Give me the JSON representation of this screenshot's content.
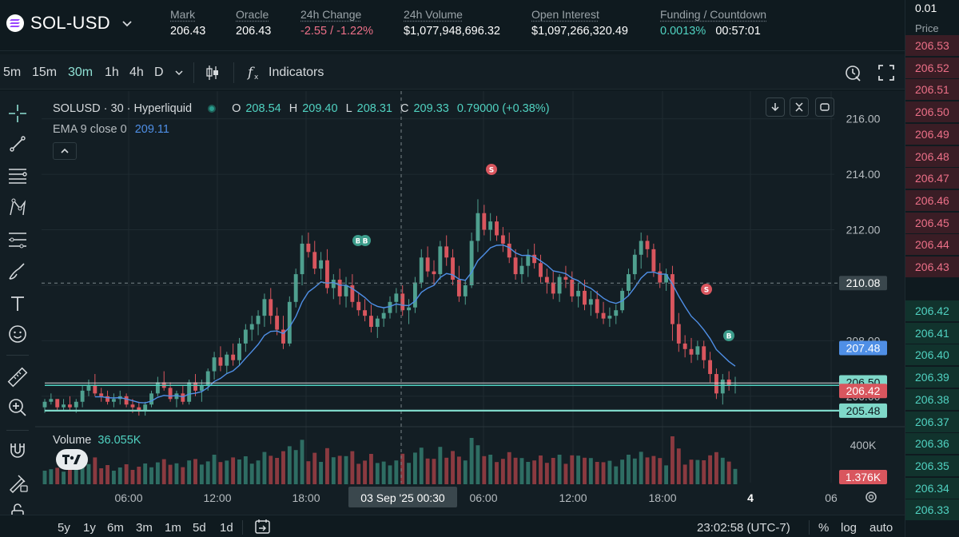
{
  "header": {
    "pair": "SOL-USD",
    "stats": [
      {
        "label": "Mark",
        "value": "206.43",
        "tone": ""
      },
      {
        "label": "Oracle",
        "value": "206.43",
        "tone": ""
      },
      {
        "label": "24h Change",
        "value": "-2.55 / -1.22%",
        "tone": "neg"
      },
      {
        "label": "24h Volume",
        "value": "$1,077,948,696.32",
        "tone": ""
      },
      {
        "label": "Open Interest",
        "value": "$1,097,266,320.49",
        "tone": ""
      },
      {
        "label": "Funding / Countdown",
        "value": "0.0013%",
        "value2": "00:57:01",
        "tone": "pos"
      }
    ]
  },
  "toolbar": {
    "timeframes": [
      "5m",
      "15m",
      "30m",
      "1h",
      "4h",
      "D"
    ],
    "active_timeframe": "30m",
    "indicators_label": "Indicators"
  },
  "legend": {
    "symbol": "SOLUSD · 30 · Hyperliquid",
    "o_label": "O",
    "o": "208.54",
    "h_label": "H",
    "h": "209.40",
    "l_label": "L",
    "l": "208.31",
    "c_label": "C",
    "c": "209.33",
    "change": "0.79000 (+0.38%)",
    "ema_label": "EMA 9 close 0",
    "ema_value": "209.11",
    "volume_label": "Volume",
    "volume_value": "36.055K"
  },
  "price_axis": {
    "ticks": [
      "216.00",
      "214.00",
      "212.00",
      "210.00",
      "208.00",
      "206.00"
    ],
    "crosshair_label": "210.08",
    "ema_tag": "207.48",
    "bid_tag": "206.50",
    "last_tag": "206.42",
    "line_tag": "205.48",
    "vol_tick": "400K",
    "vol_tag": "1.376K"
  },
  "time_axis": {
    "ticks": [
      "06:00",
      "12:00",
      "18:00",
      "06:00",
      "12:00",
      "18:00",
      "4",
      "06"
    ],
    "crosshair_label": "03 Sep '25   00:30"
  },
  "markers": {
    "sell": "S",
    "buy": "B"
  },
  "bottombar": {
    "ranges": [
      "5y",
      "1y",
      "6m",
      "3m",
      "1m",
      "5d",
      "1d"
    ],
    "clock": "23:02:58 (UTC-7)",
    "percent": "%",
    "log": "log",
    "auto": "auto"
  },
  "orderbook": {
    "tick_size": "0.01",
    "header": "Price",
    "asks": [
      "206.53",
      "206.52",
      "206.51",
      "206.50",
      "206.49",
      "206.48",
      "206.47",
      "206.46",
      "206.45",
      "206.44",
      "206.43"
    ],
    "bids": [
      "206.42",
      "206.41",
      "206.40",
      "206.39",
      "206.38",
      "206.37",
      "206.36",
      "206.35",
      "206.34",
      "206.33"
    ]
  },
  "colors": {
    "up": "#4fa08f",
    "down": "#d9565e",
    "ema": "#4f8fe6",
    "accent": "#50d2c1"
  },
  "chart_data": {
    "type": "candlestick",
    "series": [
      {
        "name": "SOLUSD · 30 · Hyperliquid",
        "ohlc": [
          [
            205.6,
            205.9,
            205.4,
            205.8
          ],
          [
            205.8,
            206.1,
            205.7,
            205.9
          ],
          [
            205.9,
            205.8,
            205.5,
            205.6
          ],
          [
            205.6,
            205.9,
            205.5,
            205.7
          ],
          [
            205.7,
            206.0,
            205.5,
            205.6
          ],
          [
            205.6,
            205.9,
            205.4,
            205.8
          ],
          [
            205.8,
            206.4,
            205.6,
            206.2
          ],
          [
            206.2,
            206.6,
            206.0,
            206.4
          ],
          [
            206.4,
            206.8,
            206.0,
            206.1
          ],
          [
            206.1,
            206.3,
            205.8,
            206.0
          ],
          [
            206.0,
            206.2,
            205.7,
            205.8
          ],
          [
            205.8,
            206.1,
            205.6,
            205.9
          ],
          [
            205.9,
            206.2,
            205.7,
            206.0
          ],
          [
            206.0,
            206.1,
            205.6,
            205.7
          ],
          [
            205.7,
            205.9,
            205.4,
            205.6
          ],
          [
            205.6,
            205.8,
            205.3,
            205.5
          ],
          [
            205.5,
            205.8,
            205.3,
            205.7
          ],
          [
            205.7,
            206.2,
            205.6,
            206.1
          ],
          [
            206.1,
            206.7,
            206.0,
            206.5
          ],
          [
            206.5,
            206.9,
            206.2,
            206.3
          ],
          [
            206.3,
            206.5,
            205.8,
            205.9
          ],
          [
            205.9,
            206.2,
            205.6,
            206.1
          ],
          [
            206.1,
            206.4,
            205.7,
            205.8
          ],
          [
            205.8,
            206.6,
            205.7,
            206.5
          ],
          [
            206.5,
            206.8,
            206.0,
            206.2
          ],
          [
            206.2,
            206.6,
            205.8,
            206.4
          ],
          [
            206.4,
            207.0,
            206.2,
            206.9
          ],
          [
            206.9,
            207.6,
            206.6,
            207.4
          ],
          [
            207.4,
            207.8,
            206.9,
            207.1
          ],
          [
            207.1,
            207.6,
            206.8,
            207.5
          ],
          [
            207.5,
            207.9,
            207.1,
            207.3
          ],
          [
            207.3,
            208.1,
            207.1,
            207.9
          ],
          [
            207.9,
            208.6,
            207.6,
            208.4
          ],
          [
            208.4,
            208.9,
            208.0,
            208.6
          ],
          [
            208.6,
            209.1,
            208.2,
            208.9
          ],
          [
            208.9,
            209.7,
            208.5,
            209.5
          ],
          [
            209.5,
            209.9,
            208.6,
            208.9
          ],
          [
            208.9,
            209.2,
            208.2,
            208.4
          ],
          [
            208.4,
            208.9,
            207.7,
            207.9
          ],
          [
            207.9,
            209.6,
            207.8,
            209.4
          ],
          [
            209.4,
            210.6,
            209.2,
            210.4
          ],
          [
            210.4,
            211.8,
            210.0,
            211.5
          ],
          [
            211.5,
            211.9,
            211.0,
            211.2
          ],
          [
            211.2,
            211.6,
            210.4,
            210.6
          ],
          [
            210.6,
            211.2,
            210.2,
            210.9
          ],
          [
            210.9,
            211.3,
            209.7,
            209.9
          ],
          [
            209.9,
            210.4,
            209.5,
            210.2
          ],
          [
            210.2,
            210.6,
            209.3,
            209.6
          ],
          [
            209.6,
            210.3,
            209.2,
            210.0
          ],
          [
            210.0,
            210.4,
            209.2,
            209.4
          ],
          [
            209.4,
            209.7,
            208.9,
            209.1
          ],
          [
            209.1,
            209.5,
            208.7,
            208.9
          ],
          [
            208.9,
            209.3,
            208.3,
            208.5
          ],
          [
            208.5,
            208.9,
            208.1,
            208.8
          ],
          [
            208.8,
            209.2,
            208.5,
            209.0
          ],
          [
            209.0,
            209.6,
            208.8,
            209.4
          ],
          [
            209.4,
            209.9,
            209.0,
            209.7
          ],
          [
            209.7,
            210.0,
            208.9,
            209.1
          ],
          [
            209.1,
            209.5,
            208.6,
            209.2
          ],
          [
            209.2,
            210.3,
            209.0,
            210.1
          ],
          [
            210.1,
            211.3,
            209.9,
            211.0
          ],
          [
            211.0,
            211.4,
            210.3,
            210.5
          ],
          [
            210.5,
            210.9,
            210.0,
            210.4
          ],
          [
            210.4,
            211.6,
            210.2,
            211.4
          ],
          [
            211.4,
            211.8,
            210.7,
            211.0
          ],
          [
            211.0,
            211.3,
            210.0,
            210.2
          ],
          [
            210.2,
            210.7,
            209.4,
            209.6
          ],
          [
            209.6,
            210.2,
            209.3,
            210.0
          ],
          [
            210.0,
            211.9,
            209.9,
            211.6
          ],
          [
            211.6,
            213.1,
            211.2,
            212.6
          ],
          [
            212.6,
            212.9,
            211.8,
            212.0
          ],
          [
            212.0,
            212.6,
            211.6,
            212.3
          ],
          [
            212.3,
            212.5,
            211.6,
            211.8
          ],
          [
            211.8,
            212.1,
            211.2,
            211.5
          ],
          [
            211.5,
            211.9,
            210.8,
            211.0
          ],
          [
            211.0,
            211.3,
            210.2,
            210.4
          ],
          [
            210.4,
            211.0,
            210.1,
            210.7
          ],
          [
            210.7,
            211.3,
            210.3,
            211.1
          ],
          [
            211.1,
            211.5,
            210.6,
            210.8
          ],
          [
            210.8,
            211.1,
            210.1,
            210.3
          ],
          [
            210.3,
            210.6,
            209.7,
            210.1
          ],
          [
            210.1,
            210.5,
            209.5,
            209.7
          ],
          [
            209.7,
            210.4,
            209.4,
            210.3
          ],
          [
            210.3,
            210.7,
            209.9,
            210.2
          ],
          [
            210.2,
            210.5,
            209.4,
            209.6
          ],
          [
            209.6,
            210.1,
            209.2,
            209.8
          ],
          [
            209.8,
            210.2,
            209.1,
            209.3
          ],
          [
            209.3,
            209.8,
            208.9,
            209.5
          ],
          [
            209.5,
            209.8,
            208.8,
            209.0
          ],
          [
            209.0,
            209.4,
            208.6,
            208.8
          ],
          [
            208.8,
            209.2,
            208.5,
            208.9
          ],
          [
            208.9,
            209.3,
            208.6,
            209.1
          ],
          [
            209.1,
            209.9,
            209.0,
            209.8
          ],
          [
            209.8,
            210.6,
            209.6,
            210.4
          ],
          [
            210.4,
            211.3,
            210.2,
            211.1
          ],
          [
            211.1,
            211.9,
            210.6,
            211.6
          ],
          [
            211.6,
            211.8,
            211.0,
            211.3
          ],
          [
            211.3,
            211.5,
            210.3,
            210.5
          ],
          [
            210.5,
            210.8,
            209.9,
            210.1
          ],
          [
            210.1,
            210.6,
            209.8,
            210.4
          ],
          [
            210.4,
            210.7,
            208.0,
            208.6
          ],
          [
            208.6,
            209.0,
            207.6,
            207.9
          ],
          [
            207.9,
            208.2,
            207.4,
            207.7
          ],
          [
            207.7,
            208.1,
            207.2,
            207.5
          ],
          [
            207.5,
            208.0,
            207.3,
            207.8
          ],
          [
            207.8,
            208.0,
            207.0,
            207.3
          ],
          [
            207.3,
            207.6,
            206.5,
            206.8
          ],
          [
            206.8,
            207.0,
            205.9,
            206.1
          ],
          [
            206.1,
            206.8,
            205.7,
            206.6
          ],
          [
            206.6,
            206.9,
            206.2,
            206.4
          ],
          [
            206.4,
            206.7,
            206.1,
            206.42
          ]
        ]
      }
    ],
    "ylim": [
      204.9,
      217.0
    ]
  }
}
